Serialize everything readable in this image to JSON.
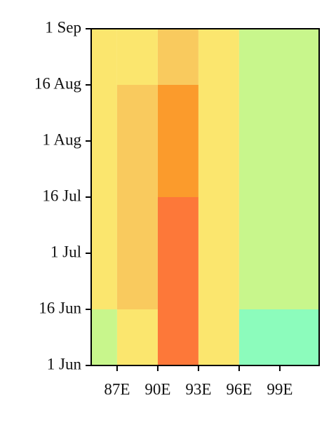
{
  "chart_data": {
    "type": "heatmap",
    "xlim": [
      85.09,
      101.9
    ],
    "xticks": [
      {
        "value": 87,
        "label": "87E"
      },
      {
        "value": 90,
        "label": "90E"
      },
      {
        "value": 93,
        "label": "93E"
      },
      {
        "value": 96,
        "label": "96E"
      },
      {
        "value": 99,
        "label": "99E"
      }
    ],
    "yticks": [
      "1 Jun",
      "16 Jun",
      "1 Jul",
      "16 Jul",
      "1 Aug",
      "16 Aug",
      "1 Sep"
    ],
    "x_edges": [
      85.09,
      87,
      90,
      93,
      96,
      101.9
    ],
    "y_edges": [
      "1 Jun",
      "16 Jun",
      "16 Jul",
      "16 Aug",
      "1 Sep"
    ],
    "cells": [
      [
        "#c8f68c",
        "#fbe66e",
        "#fd7839",
        "#fbe66e",
        "#8cfcbc"
      ],
      [
        "#fbe66e",
        "#f9ca5e",
        "#fd7839",
        "#fbe66e",
        "#c8f68c"
      ],
      [
        "#fbe66e",
        "#f9ca5e",
        "#fb9b2c",
        "#fbe66e",
        "#c8f68c"
      ],
      [
        "#fbe66e",
        "#fbe66e",
        "#f9ca5e",
        "#fbe66e",
        "#c8f68c"
      ]
    ]
  }
}
